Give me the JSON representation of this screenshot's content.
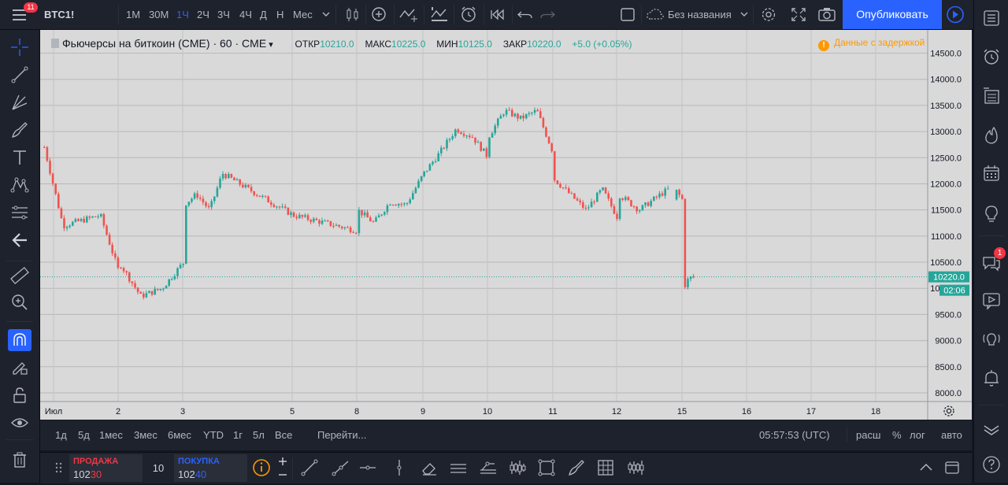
{
  "topbar": {
    "menu_badge": "11",
    "symbol": "BTC1!",
    "intervals": [
      "1М",
      "30М",
      "1Ч",
      "2Ч",
      "3Ч",
      "4Ч",
      "Д",
      "Н",
      "Мес"
    ],
    "active_interval": "1Ч",
    "layout_name": "Без названия",
    "publish_label": "Опубликовать"
  },
  "legend": {
    "title": "Фьючерсы на биткоин (CME)",
    "interval": "60",
    "exchange": "CME",
    "open_label": "ОТКР",
    "open": "10210.0",
    "high_label": "МАКС",
    "high": "10225.0",
    "low_label": "МИН",
    "low": "10125.0",
    "close_label": "ЗАКР",
    "close": "10220.0",
    "change": "+5.0 (+0.05%)",
    "delay_notice": "Данные с задержкой"
  },
  "chart_data": {
    "type": "candlestick",
    "y_ticks": [
      "14500.0",
      "14000.0",
      "13500.0",
      "13000.0",
      "12500.0",
      "12000.0",
      "11500.0",
      "11000.0",
      "10500.0",
      "10000.0",
      "9500.0",
      "9000.0",
      "8500.0",
      "8000.0"
    ],
    "x_ticks": [
      "Июл",
      "2",
      "3",
      "5",
      "8",
      "9",
      "10",
      "11",
      "12",
      "15",
      "16",
      "17",
      "18"
    ],
    "ylim": [
      7900,
      14700
    ],
    "last_price": "10220.0",
    "countdown": "02:06",
    "up_color": "#26a69a",
    "down_color": "#ef5350",
    "path": [
      {
        "x": "1 Jul",
        "y": 12700
      },
      {
        "x": "1 Jul",
        "y": 11200
      },
      {
        "x": "1 Jul",
        "y": 11300
      },
      {
        "x": "1 Jul",
        "y": 11400
      },
      {
        "x": "1 Jul",
        "y": 10300
      },
      {
        "x": "2 Jul",
        "y": 10500
      },
      {
        "x": "2 Jul",
        "y": 9850
      },
      {
        "x": "2 Jul",
        "y": 10000
      },
      {
        "x": "2 Jul",
        "y": 10500
      },
      {
        "x": "3 Jul",
        "y": 11600
      },
      {
        "x": "3 Jul",
        "y": 11800
      },
      {
        "x": "3 Jul",
        "y": 11500
      },
      {
        "x": "3 Jul",
        "y": 12200
      },
      {
        "x": "3 Jul",
        "y": 12050
      },
      {
        "x": "3 Jul",
        "y": 11900
      },
      {
        "x": "5 Jul",
        "y": 11400
      },
      {
        "x": "5 Jul",
        "y": 11100
      },
      {
        "x": "8 Jul",
        "y": 11500
      },
      {
        "x": "8 Jul",
        "y": 11250
      },
      {
        "x": "8 Jul",
        "y": 11650
      },
      {
        "x": "8 Jul",
        "y": 11600
      },
      {
        "x": "8 Jul",
        "y": 12150
      },
      {
        "x": "9 Jul",
        "y": 12200
      },
      {
        "x": "9 Jul",
        "y": 12600
      },
      {
        "x": "9 Jul",
        "y": 13050
      },
      {
        "x": "9 Jul",
        "y": 12900
      },
      {
        "x": "9 Jul",
        "y": 12500
      },
      {
        "x": "10 Jul",
        "y": 12900
      },
      {
        "x": "10 Jul",
        "y": 13400
      },
      {
        "x": "10 Jul",
        "y": 13250
      },
      {
        "x": "10 Jul",
        "y": 13400
      },
      {
        "x": "10 Jul",
        "y": 12600
      },
      {
        "x": "11 Jul",
        "y": 12100
      },
      {
        "x": "11 Jul",
        "y": 11800
      },
      {
        "x": "11 Jul",
        "y": 11500
      },
      {
        "x": "11 Jul",
        "y": 11900
      },
      {
        "x": "11 Jul",
        "y": 11800
      },
      {
        "x": "12 Jul",
        "y": 11350
      },
      {
        "x": "12 Jul",
        "y": 11500
      },
      {
        "x": "12 Jul",
        "y": 11800
      },
      {
        "x": "12 Jul",
        "y": 11700
      },
      {
        "x": "14 Jul",
        "y": 11950
      },
      {
        "x": "14 Jul",
        "y": 10400
      },
      {
        "x": "15 Jul",
        "y": 10000
      },
      {
        "x": "15 Jul",
        "y": 10200
      },
      {
        "x": "15 Jul",
        "y": 10220
      }
    ]
  },
  "bottombar": {
    "ranges": [
      "1д",
      "5д",
      "1мес",
      "3мес",
      "6мес",
      "YTD",
      "1г",
      "5л",
      "Все"
    ],
    "goto": "Перейти...",
    "time": "05:57:53 (UTC)",
    "scale_ext": "расш",
    "scale_pct": "%",
    "scale_log": "лог",
    "scale_auto": "авто"
  },
  "trade": {
    "sell_label": "ПРОДАЖА",
    "sell_price_main": "102",
    "sell_price_tail": "30",
    "quantity": "10",
    "buy_label": "ПОКУПКА",
    "buy_price_main": "102",
    "buy_price_tail": "40"
  },
  "righttb": {
    "chat_badge": "1"
  },
  "colors": {
    "accent": "#2962ff",
    "up": "#26a69a",
    "down": "#ef5350",
    "warning": "#ff9800",
    "badge": "#f23645"
  }
}
